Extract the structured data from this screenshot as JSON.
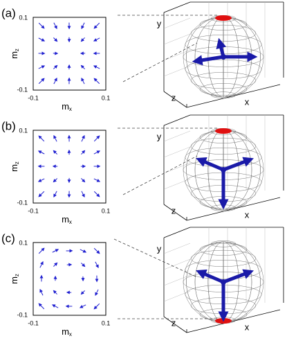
{
  "panels": [
    {
      "label": "(a)",
      "field": {
        "x_label": "m",
        "x_sub": "x",
        "y_label": "m",
        "y_sub": "z",
        "x_ticks": [
          "-0.1",
          "0.1"
        ],
        "y_ticks": [
          "0.1",
          "-0.1"
        ]
      },
      "sphere": {
        "x_axis": "x",
        "y_axis": "y",
        "z_axis": "z"
      }
    },
    {
      "label": "(b)",
      "field": {
        "x_label": "m",
        "x_sub": "x",
        "y_label": "m",
        "y_sub": "z",
        "x_ticks": [
          "-0.1",
          "0.1"
        ],
        "y_ticks": [
          "0.1",
          "-0.1"
        ]
      },
      "sphere": {
        "x_axis": "x",
        "y_axis": "y",
        "z_axis": "z"
      }
    },
    {
      "label": "(c)",
      "field": {
        "x_label": "m",
        "x_sub": "x",
        "y_label": "m",
        "y_sub": "z",
        "x_ticks": [
          "-0.1",
          "0.1"
        ],
        "y_ticks": [
          "0.1",
          "-0.1"
        ]
      },
      "sphere": {
        "x_axis": "x",
        "y_axis": "y",
        "z_axis": "z"
      }
    }
  ]
}
